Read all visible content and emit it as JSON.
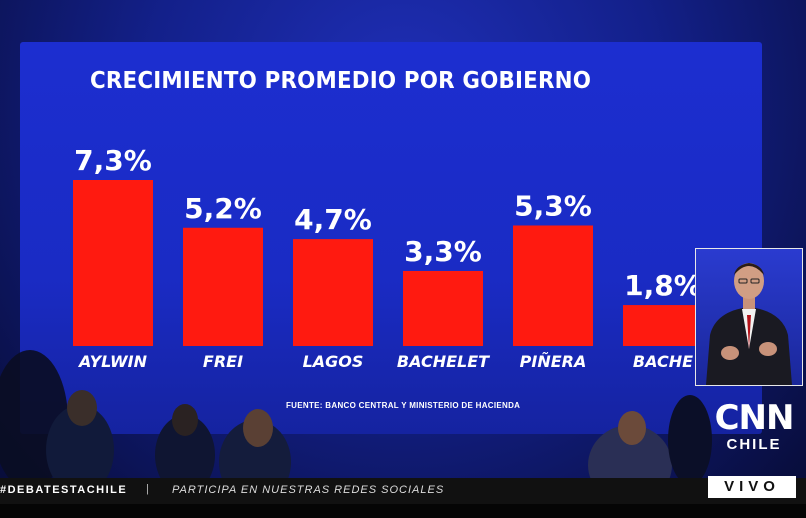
{
  "chart_data": {
    "type": "bar",
    "title": "CRECIMIENTO PROMEDIO POR GOBIERNO",
    "categories": [
      "AYLWIN",
      "FREI",
      "LAGOS",
      "BACHELET",
      "PIÑERA",
      "BACHELET"
    ],
    "values": [
      7.3,
      5.2,
      4.7,
      3.3,
      5.3,
      1.8
    ],
    "value_labels": [
      "7,3%",
      "5,2%",
      "4,7%",
      "3,3%",
      "5,3%",
      "1,8%"
    ],
    "category_labels": [
      "AYLWIN",
      "FREI",
      "LAGOS",
      "BACHELET",
      "PIÑERA",
      "BACHE"
    ],
    "ylim": [
      0,
      7.3
    ],
    "grid": false,
    "legend": "none",
    "source": "FUENTE: BANCO CENTRAL Y MINISTERIO DE HACIENDA",
    "colors": {
      "bar": "#ff1a10",
      "background": "#1c2ed0"
    }
  },
  "broadcast": {
    "ticker_tag": "#DEBATESTACHILE",
    "ticker_message": "PARTICIPA EN NUESTRAS REDES SOCIALES",
    "ticker_separator": "|",
    "logo_main": "CNN",
    "logo_sub": "CHILE",
    "live_label": "VIVO"
  }
}
